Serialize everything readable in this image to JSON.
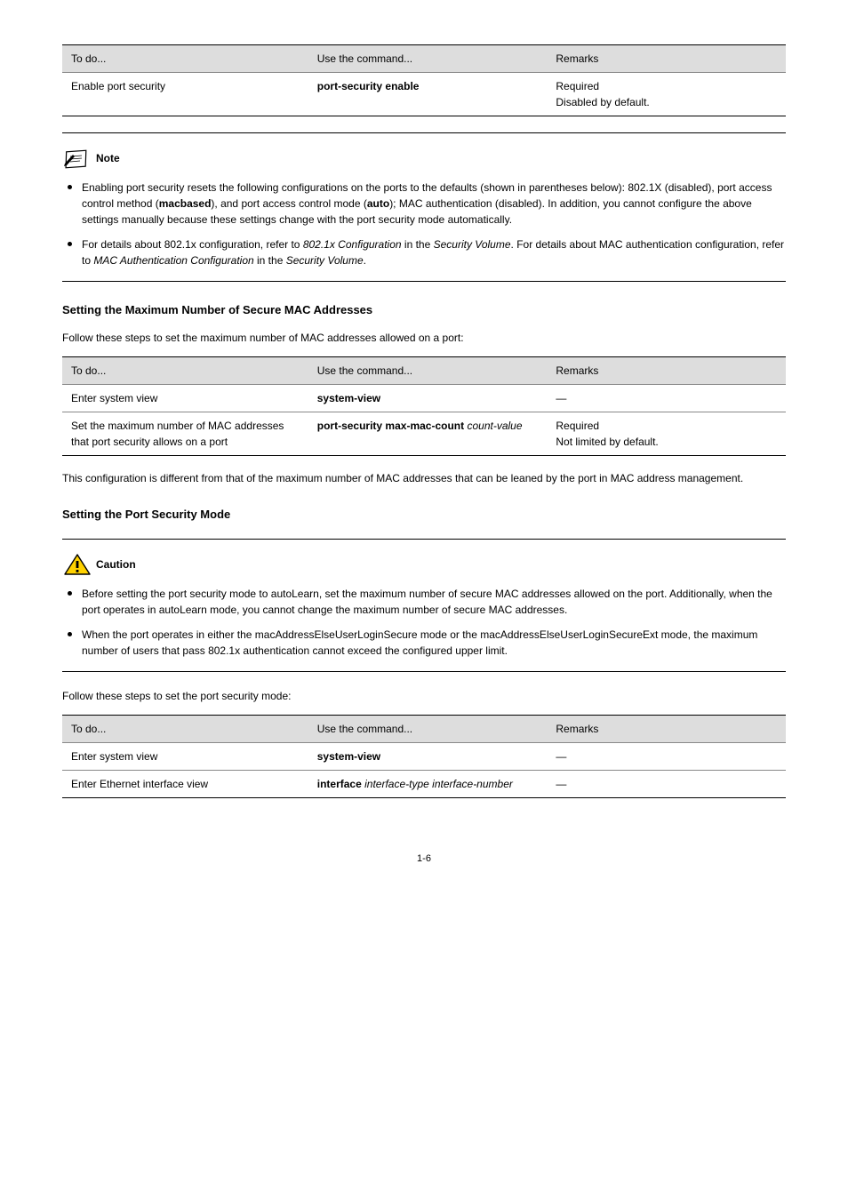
{
  "tables": {
    "t1": {
      "headers": [
        "To do...",
        "Use the command...",
        "Remarks"
      ],
      "rows": [
        [
          "Enable port security",
          "<span class='cmd'>port-security enable</span>",
          "Required<br>Disabled by default."
        ]
      ]
    },
    "t2": {
      "headers": [
        "To do...",
        "Use the command...",
        "Remarks"
      ],
      "rows": [
        [
          "Enter system view",
          "<span class='cmd'>system-view</span>",
          "—"
        ],
        [
          "Set the maximum number of MAC addresses that port security allows on a port",
          "<span class='cmd'>port-security max-mac-count</span> <span class='arg'>count-value</span>",
          "Required<br>Not limited by default."
        ]
      ]
    },
    "t3": {
      "headers": [
        "To do...",
        "Use the command...",
        "Remarks"
      ],
      "rows": [
        [
          "Enter system view",
          "<span class='cmd'>system-view</span>",
          "—"
        ],
        [
          "Enter Ethernet interface view",
          "<span class='cmd'>interface</span> <span class='arg'>interface-type interface-number</span>",
          "—"
        ]
      ]
    }
  },
  "note": {
    "label": "Note",
    "items": [
      "Enabling port security resets the following configurations on the ports to the defaults (shown in parentheses below): 802.1X (disabled), port access control method (<span class='cmd'>macbased</span>), and port access control mode (<span class='cmd'>auto</span>); MAC authentication (disabled). In addition, you cannot configure the above settings manually because these settings change with the port security mode automatically.",
      "For details about 802.1x configuration, refer to <span class='arg'>802.1x Configuration</span> in the <span class='arg'>Security Volume</span>. For details about MAC authentication configuration, refer to <span class='arg'>MAC Authentication Configuration</span> in the <span class='arg'>Security Volume</span>."
    ]
  },
  "sections": {
    "maxmac_title": "Setting the Maximum Number of Secure MAC Addresses",
    "maxmac_intro": "Follow these steps to set the maximum number of MAC addresses allowed on a port:",
    "maxmac_after": "This configuration is different from that of the maximum number of MAC addresses that can be leaned by the port in MAC address management.",
    "mode_title": "Setting the Port Security Mode"
  },
  "caution": {
    "label": "Caution",
    "items": [
      "Before setting the port security mode to autoLearn, set the maximum number of secure MAC addresses allowed on the port. Additionally, when the port operates in autoLearn mode, you cannot change the maximum number of secure MAC addresses.",
      "When the port operates in either the macAddressElseUserLoginSecure mode or the macAddressElseUserLoginSecureExt mode, the maximum number of users that pass 802.1x authentication cannot exceed the configured upper limit."
    ]
  },
  "mode_intro": "Follow these steps to set the port security mode:",
  "pagenum": "1-6"
}
